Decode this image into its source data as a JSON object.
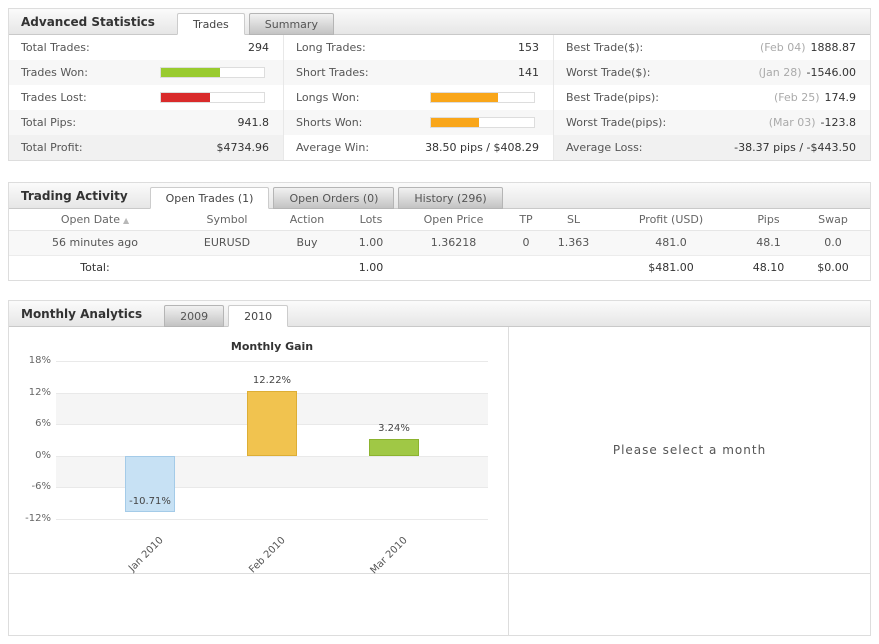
{
  "colors": {
    "won_bar_green": "#99cb2f",
    "lost_bar_red": "#d92b2b",
    "orange_bar": "#f9a61a",
    "profit_green": "#009933",
    "jan_bar_blue": "#c7e1f4",
    "feb_bar_yellow": "#f1c34f",
    "mar_bar_green": "#a0c845"
  },
  "advanced_statistics": {
    "title": "Advanced Statistics",
    "tabs": [
      "Trades",
      "Summary"
    ],
    "columns": [
      {
        "rows": [
          {
            "label": "Total Trades:",
            "value": "294"
          },
          {
            "label": "Trades Won:",
            "bar_percent": 57,
            "bar_color": "#99cb2f"
          },
          {
            "label": "Trades Lost:",
            "bar_percent": 48,
            "bar_color": "#d92b2b"
          },
          {
            "label": "Total Pips:",
            "value": "941.8"
          },
          {
            "label": "Total Profit:",
            "value": "$4734.96"
          }
        ]
      },
      {
        "rows": [
          {
            "label": "Long Trades:",
            "value": "153"
          },
          {
            "label": "Short Trades:",
            "value": "141"
          },
          {
            "label": "Longs Won:",
            "bar_percent": 65,
            "bar_color": "#f9a61a"
          },
          {
            "label": "Shorts Won:",
            "bar_percent": 47,
            "bar_color": "#f9a61a"
          },
          {
            "label": "Average Win:",
            "value": "38.50 pips / $408.29"
          }
        ]
      },
      {
        "rows": [
          {
            "label": "Best Trade($):",
            "date": "(Feb 04)",
            "value": "1888.87"
          },
          {
            "label": "Worst Trade($):",
            "date": "(Jan 28)",
            "value": "-1546.00"
          },
          {
            "label": "Best Trade(pips):",
            "date": "(Feb 25)",
            "value": "174.9"
          },
          {
            "label": "Worst Trade(pips):",
            "date": "(Mar 03)",
            "value": "-123.8"
          },
          {
            "label": "Average Loss:",
            "value": "-38.37 pips / -$443.50"
          }
        ]
      }
    ]
  },
  "trading_activity": {
    "title": "Trading Activity",
    "tabs": [
      "Open Trades (1)",
      "Open Orders (0)",
      "History (296)"
    ],
    "sort_indicator": "▲",
    "table": {
      "headers": [
        "Open Date",
        "Symbol",
        "Action",
        "Lots",
        "Open Price",
        "TP",
        "SL",
        "Profit (USD)",
        "Pips",
        "Swap"
      ],
      "rows": [
        [
          "56 minutes ago",
          "EURUSD",
          "Buy",
          "1.00",
          "1.36218",
          "0",
          "1.363",
          "481.0",
          "48.1",
          "0.0"
        ]
      ],
      "total": {
        "label": "Total:",
        "lots": "1.00",
        "profit": "$481.00",
        "pips": "48.10",
        "swap": "$0.00"
      }
    }
  },
  "monthly_analytics": {
    "title": "Monthly Analytics",
    "tabs": [
      "2009",
      "2010"
    ],
    "detail_placeholder": "Please select a month"
  },
  "chart_data": {
    "type": "bar",
    "title": "Monthly Gain",
    "categories": [
      "Jan 2010",
      "Feb 2010",
      "Mar 2010"
    ],
    "values": [
      -10.71,
      12.22,
      3.24
    ],
    "value_labels": [
      "-10.71%",
      "12.22%",
      "3.24%"
    ],
    "bar_colors": [
      "#c7e1f4",
      "#f1c34f",
      "#a0c845"
    ],
    "bar_border_colors": [
      "#a4cbe8",
      "#ddae35",
      "#8cb32f"
    ],
    "xlabel": "",
    "ylabel": "",
    "ylim": [
      -12,
      18
    ],
    "ytick_values": [
      18,
      12,
      6,
      0,
      -6,
      -12
    ],
    "ytick_labels": [
      "18%",
      "12%",
      "6%",
      "0%",
      "-6%",
      "-12%"
    ],
    "grid": true,
    "legend": false
  }
}
